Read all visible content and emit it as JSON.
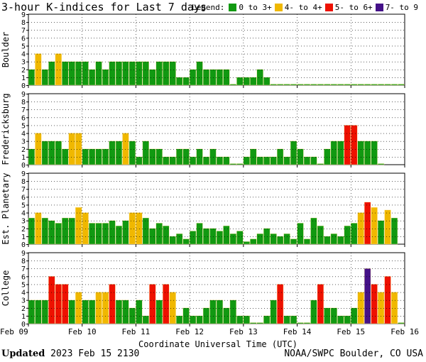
{
  "title": "3-hour K-indices for Last 7 days",
  "legend": {
    "label": "Legend:",
    "items": [
      {
        "label": "0 to 3+",
        "color": "#119911"
      },
      {
        "label": "4- to 4+",
        "color": "#f0b800"
      },
      {
        "label": "5- to 6+",
        "color": "#ee1100"
      },
      {
        "label": "7- to 9",
        "color": "#441188"
      }
    ]
  },
  "footer": {
    "updated_label": "Updated",
    "updated_value": "2023 Feb 15 2130",
    "source": "NOAA/SWPC Boulder, CO USA"
  },
  "chart_data": {
    "type": "bar",
    "xlabel": "Coordinate Universal Time (UTC)",
    "x_tick_labels": [
      "Feb 09",
      "Feb 10",
      "Feb 11",
      "Feb 12",
      "Feb 13",
      "Feb 14",
      "Feb 15",
      "Feb 16"
    ],
    "ylim": [
      0,
      9
    ],
    "y_ticks": [
      0,
      1,
      2,
      3,
      4,
      5,
      6,
      7,
      8,
      9
    ],
    "intervals_per_day": 8,
    "panels": [
      {
        "name": "Boulder",
        "values": [
          2,
          4,
          2,
          3,
          4,
          3,
          3,
          3,
          3,
          2,
          3,
          2,
          3,
          3,
          3,
          3,
          3,
          3,
          2,
          3,
          3,
          3,
          1,
          1,
          2,
          3,
          2,
          2,
          2,
          2,
          0,
          1,
          1,
          1,
          2,
          1,
          0,
          0,
          0,
          0,
          0,
          0,
          0,
          0,
          0,
          0,
          0,
          0,
          0,
          0,
          0,
          0,
          0,
          0,
          0,
          0
        ]
      },
      {
        "name": "Fredericksburg",
        "values": [
          2,
          4,
          3,
          3,
          3,
          2,
          4,
          4,
          2,
          2,
          2,
          2,
          3,
          3,
          4,
          3,
          1,
          3,
          2,
          2,
          1,
          1,
          2,
          2,
          1,
          2,
          1,
          2,
          1,
          1,
          0,
          0,
          1,
          2,
          1,
          1,
          1,
          2,
          1,
          3,
          2,
          1,
          1,
          0,
          2,
          3,
          3,
          5,
          5,
          3,
          3,
          3,
          0
        ]
      },
      {
        "name": "Est. Planetary",
        "values": [
          3.33,
          4,
          3.33,
          3,
          2.67,
          3.33,
          3.33,
          4.67,
          4,
          2.67,
          2.67,
          2.67,
          3,
          2.33,
          3,
          4,
          4,
          3.33,
          2,
          2.67,
          2.33,
          1,
          1.33,
          0.67,
          1.67,
          2.67,
          2,
          2,
          1.67,
          2.33,
          1.33,
          1.67,
          0.33,
          0.67,
          1.33,
          2,
          1.33,
          1,
          1.33,
          0.67,
          2.67,
          0.67,
          3.33,
          2.33,
          1,
          1.33,
          1,
          2.33,
          2.67,
          4,
          5.33,
          4.67,
          3,
          4.33,
          3.33
        ]
      },
      {
        "name": "College",
        "values": [
          3,
          3,
          3,
          6,
          5,
          5,
          3,
          4,
          3,
          3,
          4,
          4,
          5,
          3,
          3,
          2,
          3,
          1,
          5,
          3,
          5,
          4,
          1,
          2,
          1,
          1,
          2,
          3,
          3,
          2,
          3,
          1,
          1,
          0,
          0,
          1,
          3,
          5,
          1,
          1,
          0,
          0,
          3,
          5,
          2,
          2,
          1,
          1,
          2,
          4,
          7,
          5,
          4,
          6,
          4,
          0
        ]
      }
    ]
  }
}
